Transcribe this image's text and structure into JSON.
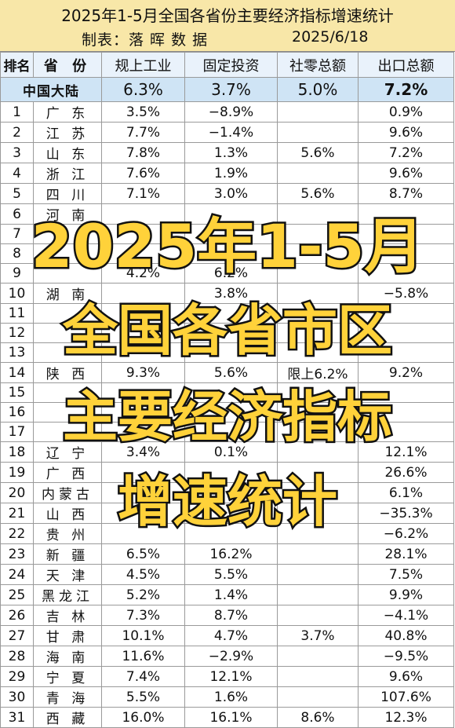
{
  "header": {
    "title": "2025年1-5月全国各省份主要经济指标增速统计",
    "maker": "制表：落 晖 数 据",
    "date": "2025/6/18"
  },
  "columns": [
    "排名",
    "省 份",
    "规上工业",
    "固定投资",
    "社零总额",
    "出口总额"
  ],
  "national": {
    "name": "中国大陆",
    "industry": "6.3%",
    "investment": "3.7%",
    "retail": "5.0%",
    "export": "7.2%"
  },
  "rows": [
    {
      "rank": "1",
      "name": "广 东",
      "industry": "3.5%",
      "investment": "−8.9%",
      "retail": "",
      "export": "0.9%",
      "c": [
        "black",
        "blue",
        "black",
        "black"
      ]
    },
    {
      "rank": "2",
      "name": "江 苏",
      "industry": "7.7%",
      "investment": "−1.4%",
      "retail": "",
      "export": "9.6%",
      "c": [
        "red",
        "blue",
        "black",
        "red"
      ]
    },
    {
      "rank": "3",
      "name": "山 东",
      "industry": "7.8%",
      "investment": "1.3%",
      "retail": "5.6%",
      "export": "7.2%",
      "c": [
        "red",
        "black",
        "red",
        "red"
      ]
    },
    {
      "rank": "4",
      "name": "浙 江",
      "industry": "7.6%",
      "investment": "1.9%",
      "retail": "",
      "export": "9.6%",
      "c": [
        "red",
        "black",
        "black",
        "red"
      ]
    },
    {
      "rank": "5",
      "name": "四 川",
      "industry": "7.1%",
      "investment": "3.0%",
      "retail": "5.6%",
      "export": "8.7%",
      "c": [
        "red",
        "black",
        "red",
        "red"
      ]
    },
    {
      "rank": "6",
      "name": "河 南",
      "industry": "",
      "investment": "",
      "retail": "",
      "export": "",
      "c": [
        "red",
        "red",
        "black",
        "orange"
      ]
    },
    {
      "rank": "7",
      "name": "",
      "industry": "",
      "investment": "",
      "retail": "",
      "export": "",
      "c": [
        "black",
        "black",
        "black",
        "orange"
      ]
    },
    {
      "rank": "8",
      "name": "",
      "industry": "",
      "investment": "",
      "retail": "",
      "export": "",
      "c": [
        "black",
        "black",
        "black",
        "blue"
      ]
    },
    {
      "rank": "9",
      "name": "",
      "industry": "4.2%",
      "investment": "6.2%",
      "retail": "",
      "export": "",
      "c": [
        "black",
        "red",
        "black",
        "green"
      ]
    },
    {
      "rank": "10",
      "name": "湖 南",
      "industry": "",
      "investment": "3.8%",
      "retail": "",
      "export": "−5.8%",
      "c": [
        "red",
        "red",
        "black",
        "blue"
      ]
    },
    {
      "rank": "11",
      "name": "",
      "industry": "",
      "investment": "",
      "retail": "",
      "export": "",
      "c": [
        "black",
        "black",
        "black",
        "green"
      ]
    },
    {
      "rank": "12",
      "name": "",
      "industry": "",
      "investment": "",
      "retail": "",
      "export": "",
      "c": [
        "black",
        "black",
        "black",
        "black"
      ]
    },
    {
      "rank": "13",
      "name": "",
      "industry": "",
      "investment": "",
      "retail": "",
      "export": "",
      "c": [
        "black",
        "red",
        "black",
        "blue"
      ]
    },
    {
      "rank": "14",
      "name": "陕 西",
      "industry": "9.3%",
      "investment": "5.6%",
      "retail": "限上6.2%",
      "export": "9.2%",
      "c": [
        "red",
        "red",
        "red",
        "red"
      ]
    },
    {
      "rank": "15",
      "name": "",
      "industry": "",
      "investment": "",
      "retail": "",
      "export": "",
      "c": [
        "black",
        "black",
        "black",
        "black"
      ]
    },
    {
      "rank": "16",
      "name": "",
      "industry": "",
      "investment": "",
      "retail": "",
      "export": "",
      "c": [
        "black",
        "black",
        "black",
        "red"
      ]
    },
    {
      "rank": "17",
      "name": "",
      "industry": "",
      "investment": "",
      "retail": "",
      "export": "",
      "c": [
        "black",
        "black",
        "black",
        "blue"
      ]
    },
    {
      "rank": "18",
      "name": "辽 宁",
      "industry": "3.4%",
      "investment": "0.1%",
      "retail": "",
      "export": "12.1%",
      "c": [
        "black",
        "black",
        "black",
        "green"
      ]
    },
    {
      "rank": "19",
      "name": "广 西",
      "industry": "",
      "investment": "",
      "retail": "",
      "export": "26.6%",
      "c": [
        "red",
        "black",
        "black",
        "orange"
      ]
    },
    {
      "rank": "20",
      "name": "内蒙古",
      "industry": "",
      "investment": "",
      "retail": "",
      "export": "6.1%",
      "c": [
        "black",
        "black",
        "black",
        "black"
      ]
    },
    {
      "rank": "21",
      "name": "山 西",
      "industry": "",
      "investment": "",
      "retail": "",
      "export": "−35.3%",
      "c": [
        "black",
        "black",
        "black",
        "blue"
      ]
    },
    {
      "rank": "22",
      "name": "贵 州",
      "industry": "",
      "investment": "",
      "retail": "",
      "export": "−6.2%",
      "c": [
        "red",
        "black",
        "black",
        "blue"
      ]
    },
    {
      "rank": "23",
      "name": "新 疆",
      "industry": "6.5%",
      "investment": "16.2%",
      "retail": "",
      "export": "28.1%",
      "c": [
        "red",
        "green",
        "black",
        "orange"
      ]
    },
    {
      "rank": "24",
      "name": "天 津",
      "industry": "4.5%",
      "investment": "5.5%",
      "retail": "",
      "export": "7.5%",
      "c": [
        "black",
        "red",
        "black",
        "red"
      ]
    },
    {
      "rank": "25",
      "name": "黑龙江",
      "industry": "5.2%",
      "investment": "1.4%",
      "retail": "",
      "export": "9.9%",
      "c": [
        "black",
        "black",
        "black",
        "red"
      ]
    },
    {
      "rank": "26",
      "name": "吉 林",
      "industry": "7.3%",
      "investment": "8.7%",
      "retail": "",
      "export": "−4.1%",
      "c": [
        "red",
        "red",
        "black",
        "blue"
      ]
    },
    {
      "rank": "27",
      "name": "甘 肃",
      "industry": "10.1%",
      "investment": "4.7%",
      "retail": "3.7%",
      "export": "40.8%",
      "c": [
        "green",
        "red",
        "black",
        "orange"
      ]
    },
    {
      "rank": "28",
      "name": "海 南",
      "industry": "11.6%",
      "investment": "−2.9%",
      "retail": "",
      "export": "−9.5%",
      "c": [
        "green",
        "blue",
        "black",
        "blue"
      ]
    },
    {
      "rank": "29",
      "name": "宁 夏",
      "industry": "7.4%",
      "investment": "12.1%",
      "retail": "",
      "export": "9.6%",
      "c": [
        "red",
        "green",
        "black",
        "red"
      ]
    },
    {
      "rank": "30",
      "name": "青 海",
      "industry": "5.5%",
      "investment": "1.6%",
      "retail": "",
      "export": "107.6%",
      "c": [
        "black",
        "black",
        "black",
        "purple"
      ]
    },
    {
      "rank": "31",
      "name": "西 藏",
      "industry": "16.0%",
      "investment": "16.1%",
      "retail": "8.6%",
      "export": "12.3%",
      "c": [
        "purple",
        "green",
        "purple",
        "green"
      ]
    }
  ],
  "overlay": {
    "line1": "2025年1-5月",
    "line2": "全国各省市区",
    "line3": "主要经济指标",
    "line4": "增速统计"
  }
}
